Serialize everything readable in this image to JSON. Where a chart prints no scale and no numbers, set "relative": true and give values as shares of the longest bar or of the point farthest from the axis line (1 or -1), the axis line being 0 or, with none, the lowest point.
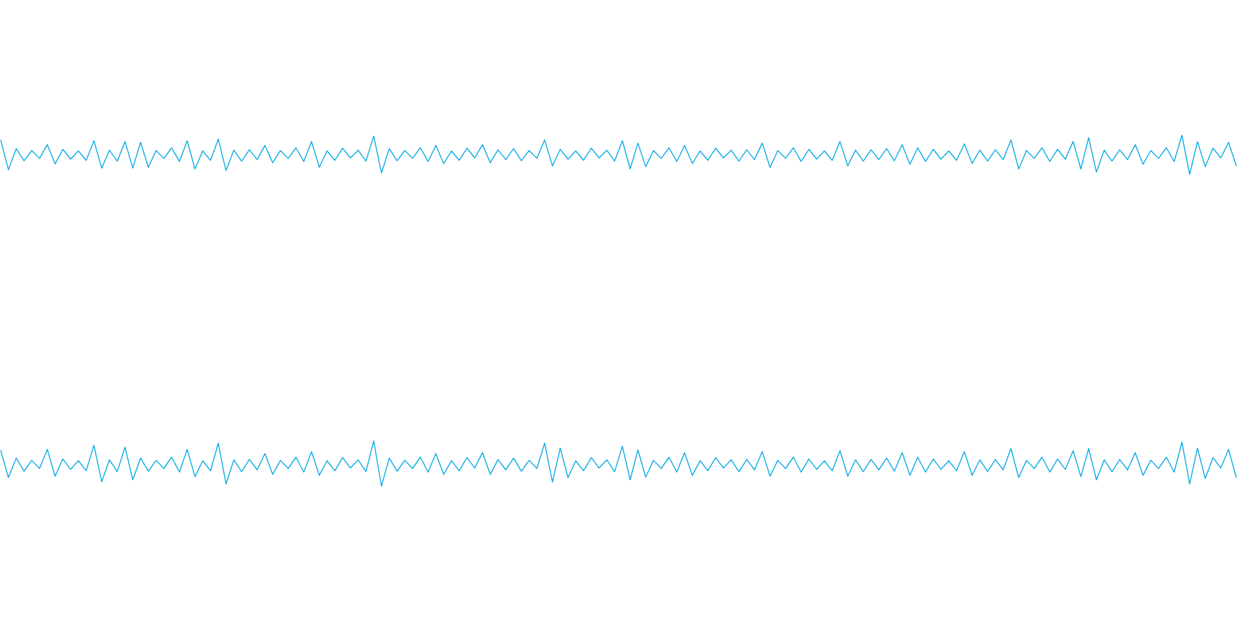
{
  "chart_data": [
    {
      "type": "line",
      "relative": true,
      "color": "#06a9e4",
      "categories": [
        null,
        null,
        null,
        null,
        null,
        null,
        null,
        null,
        null,
        null,
        null,
        null,
        null,
        null,
        null,
        null,
        null,
        null,
        null,
        null,
        null,
        null,
        null,
        null,
        null,
        null,
        null,
        null,
        null,
        null,
        null,
        null,
        null,
        null,
        null,
        null,
        null,
        null,
        null,
        null,
        null,
        null,
        null,
        null,
        null,
        null,
        null,
        null,
        null,
        null,
        null,
        null,
        null,
        null,
        null,
        null,
        null,
        null,
        null,
        null,
        null,
        null,
        null,
        null,
        null,
        null,
        null,
        null,
        null,
        null,
        null,
        null,
        null,
        null,
        null,
        null,
        null,
        null,
        null,
        null,
        null,
        null,
        null,
        null,
        null,
        null,
        null,
        null,
        null,
        null,
        null,
        null,
        null,
        null,
        null,
        null,
        null,
        null,
        null,
        null,
        null,
        null,
        null,
        null,
        null,
        null,
        null,
        null,
        null,
        null,
        null,
        null,
        null,
        null,
        null,
        null,
        null,
        null,
        null,
        null,
        null,
        null,
        null,
        null,
        null,
        null,
        null,
        null,
        null,
        null,
        null,
        null,
        null,
        null,
        null,
        null,
        null,
        null,
        null,
        null,
        null,
        null,
        null,
        null,
        null,
        null,
        null,
        null,
        null,
        null,
        null,
        null,
        null,
        null,
        null,
        null,
        null,
        null,
        null,
        null
      ],
      "values": [
        0.88,
        0.12,
        0.66,
        0.35,
        0.61,
        0.41,
        0.76,
        0.27,
        0.64,
        0.39,
        0.6,
        0.36,
        0.86,
        0.16,
        0.62,
        0.34,
        0.84,
        0.16,
        0.82,
        0.18,
        0.61,
        0.41,
        0.68,
        0.33,
        0.86,
        0.14,
        0.6,
        0.36,
        0.9,
        0.1,
        0.62,
        0.34,
        0.63,
        0.38,
        0.74,
        0.3,
        0.61,
        0.41,
        0.68,
        0.33,
        0.84,
        0.18,
        0.6,
        0.36,
        0.67,
        0.42,
        0.62,
        0.34,
        0.98,
        0.04,
        0.66,
        0.35,
        0.61,
        0.41,
        0.68,
        0.33,
        0.74,
        0.28,
        0.6,
        0.36,
        0.67,
        0.42,
        0.76,
        0.3,
        0.63,
        0.38,
        0.66,
        0.35,
        0.61,
        0.41,
        0.88,
        0.22,
        0.64,
        0.39,
        0.6,
        0.36,
        0.67,
        0.42,
        0.62,
        0.34,
        0.86,
        0.14,
        0.8,
        0.2,
        0.61,
        0.41,
        0.68,
        0.33,
        0.74,
        0.28,
        0.6,
        0.36,
        0.67,
        0.42,
        0.62,
        0.34,
        0.63,
        0.38,
        0.8,
        0.18,
        0.61,
        0.41,
        0.68,
        0.33,
        0.64,
        0.39,
        0.6,
        0.36,
        0.84,
        0.22,
        0.62,
        0.34,
        0.63,
        0.38,
        0.66,
        0.35,
        0.76,
        0.26,
        0.68,
        0.33,
        0.64,
        0.39,
        0.6,
        0.36,
        0.78,
        0.28,
        0.62,
        0.34,
        0.63,
        0.38,
        0.88,
        0.14,
        0.61,
        0.41,
        0.68,
        0.33,
        0.64,
        0.39,
        0.84,
        0.14,
        0.94,
        0.06,
        0.62,
        0.34,
        0.63,
        0.38,
        0.76,
        0.26,
        0.61,
        0.41,
        0.68,
        0.33,
        1.0,
        0.0,
        0.84,
        0.2,
        0.67,
        0.42,
        0.82,
        0.22
      ]
    },
    {
      "type": "line",
      "relative": true,
      "color": "#06a9e4",
      "categories": [
        null,
        null,
        null,
        null,
        null,
        null,
        null,
        null,
        null,
        null,
        null,
        null,
        null,
        null,
        null,
        null,
        null,
        null,
        null,
        null,
        null,
        null,
        null,
        null,
        null,
        null,
        null,
        null,
        null,
        null,
        null,
        null,
        null,
        null,
        null,
        null,
        null,
        null,
        null,
        null,
        null,
        null,
        null,
        null,
        null,
        null,
        null,
        null,
        null,
        null,
        null,
        null,
        null,
        null,
        null,
        null,
        null,
        null,
        null,
        null,
        null,
        null,
        null,
        null,
        null,
        null,
        null,
        null,
        null,
        null,
        null,
        null,
        null,
        null,
        null,
        null,
        null,
        null,
        null,
        null,
        null,
        null,
        null,
        null,
        null,
        null,
        null,
        null,
        null,
        null,
        null,
        null,
        null,
        null,
        null,
        null,
        null,
        null,
        null,
        null,
        null,
        null,
        null,
        null,
        null,
        null,
        null,
        null,
        null,
        null,
        null,
        null,
        null,
        null,
        null,
        null,
        null,
        null,
        null,
        null,
        null,
        null,
        null,
        null,
        null,
        null,
        null,
        null,
        null,
        null,
        null,
        null,
        null,
        null,
        null,
        null,
        null,
        null,
        null,
        null,
        null,
        null,
        null,
        null,
        null,
        null,
        null,
        null,
        null,
        null,
        null,
        null,
        null,
        null,
        null,
        null,
        null,
        null,
        null,
        null
      ],
      "values": [
        0.79,
        0.19,
        0.62,
        0.33,
        0.57,
        0.39,
        0.81,
        0.22,
        0.6,
        0.37,
        0.56,
        0.34,
        0.9,
        0.1,
        0.58,
        0.32,
        0.86,
        0.14,
        0.62,
        0.33,
        0.57,
        0.39,
        0.64,
        0.31,
        0.81,
        0.21,
        0.56,
        0.34,
        0.95,
        0.05,
        0.58,
        0.32,
        0.59,
        0.36,
        0.72,
        0.26,
        0.57,
        0.39,
        0.64,
        0.31,
        0.76,
        0.24,
        0.56,
        0.34,
        0.63,
        0.4,
        0.58,
        0.32,
        1.0,
        0.0,
        0.62,
        0.33,
        0.57,
        0.39,
        0.64,
        0.31,
        0.72,
        0.26,
        0.56,
        0.34,
        0.63,
        0.4,
        0.74,
        0.26,
        0.59,
        0.36,
        0.62,
        0.33,
        0.57,
        0.39,
        0.95,
        0.09,
        0.84,
        0.19,
        0.56,
        0.34,
        0.63,
        0.4,
        0.58,
        0.32,
        0.88,
        0.14,
        0.8,
        0.2,
        0.57,
        0.39,
        0.64,
        0.31,
        0.74,
        0.24,
        0.56,
        0.34,
        0.63,
        0.4,
        0.58,
        0.32,
        0.59,
        0.36,
        0.76,
        0.22,
        0.57,
        0.39,
        0.64,
        0.31,
        0.6,
        0.37,
        0.56,
        0.34,
        0.78,
        0.22,
        0.58,
        0.32,
        0.59,
        0.36,
        0.62,
        0.33,
        0.74,
        0.24,
        0.64,
        0.31,
        0.6,
        0.37,
        0.56,
        0.34,
        0.76,
        0.24,
        0.58,
        0.32,
        0.59,
        0.36,
        0.83,
        0.19,
        0.57,
        0.39,
        0.64,
        0.31,
        0.6,
        0.37,
        0.78,
        0.21,
        0.83,
        0.14,
        0.58,
        0.32,
        0.59,
        0.36,
        0.74,
        0.24,
        0.57,
        0.39,
        0.64,
        0.31,
        0.97,
        0.05,
        0.84,
        0.17,
        0.63,
        0.4,
        0.81,
        0.19
      ]
    }
  ]
}
